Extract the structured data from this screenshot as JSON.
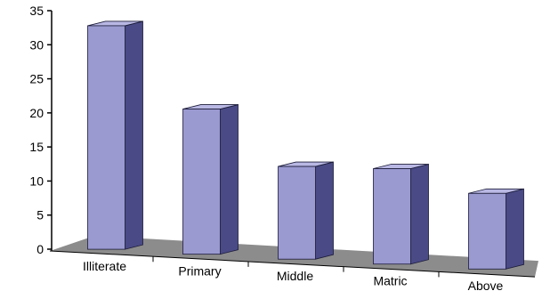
{
  "chart_data": {
    "type": "bar",
    "categories": [
      "Illiterate",
      "Primary",
      "Middle",
      "Matric",
      "Above"
    ],
    "values": [
      32.8,
      21.3,
      13.6,
      14.0,
      11.1
    ],
    "title": "",
    "xlabel": "",
    "ylabel": "",
    "ylim": [
      0,
      35
    ],
    "yticks": [
      0,
      5,
      10,
      15,
      20,
      25,
      30,
      35
    ],
    "grid": false,
    "style": "3d-column",
    "colors": {
      "bar_front": "#9A99D0",
      "bar_side": "#4A4A86",
      "bar_top": "#B9B8E4",
      "floor": "#8C8C8C",
      "axis": "#000000"
    }
  }
}
